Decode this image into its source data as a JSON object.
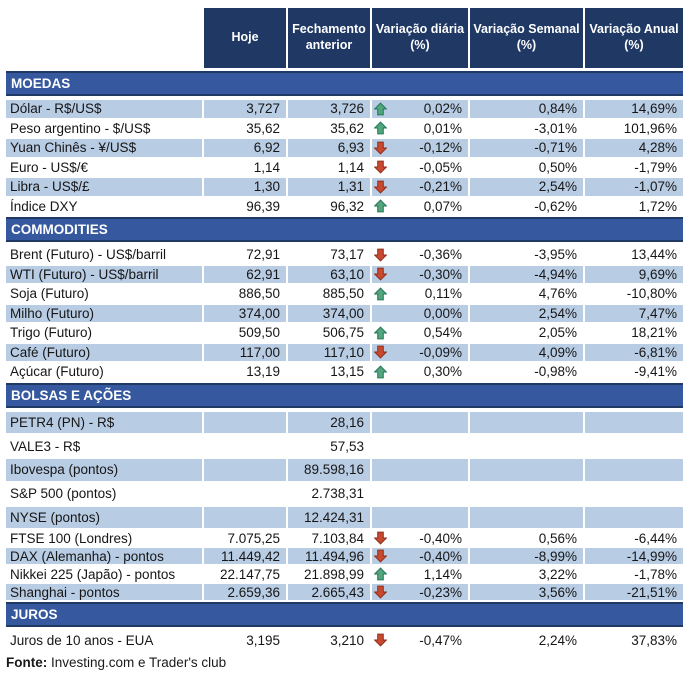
{
  "chart_data": {
    "type": "table",
    "columns": [
      "",
      "Hoje",
      "Fechamento anterior",
      "Variação diária (%)",
      "Variação Semanal (%)",
      "Variação Anual (%)"
    ],
    "sections": [
      {
        "title": "MOEDAS",
        "rows": [
          {
            "label": "Dólar - R$/US$",
            "hoje": "3,727",
            "fechamento": "3,726",
            "trend": "up",
            "diaria": "0,02%",
            "semanal": "0,84%",
            "anual": "14,69%",
            "shaded": true,
            "size": ""
          },
          {
            "label": "Peso argentino - $/US$",
            "hoje": "35,62",
            "fechamento": "35,62",
            "trend": "up",
            "diaria": "0,01%",
            "semanal": "-3,01%",
            "anual": "101,96%",
            "shaded": false,
            "size": ""
          },
          {
            "label": "Yuan Chinês - ¥/US$",
            "hoje": "6,92",
            "fechamento": "6,93",
            "trend": "down",
            "diaria": "-0,12%",
            "semanal": "-0,71%",
            "anual": "4,28%",
            "shaded": true,
            "size": ""
          },
          {
            "label": "Euro - US$/€",
            "hoje": "1,14",
            "fechamento": "1,14",
            "trend": "down",
            "diaria": "-0,05%",
            "semanal": "0,50%",
            "anual": "-1,79%",
            "shaded": false,
            "size": ""
          },
          {
            "label": "Libra - US$/£",
            "hoje": "1,30",
            "fechamento": "1,31",
            "trend": "down",
            "diaria": "-0,21%",
            "semanal": "2,54%",
            "anual": "-1,07%",
            "shaded": true,
            "size": ""
          },
          {
            "label": "Índice DXY",
            "hoje": "96,39",
            "fechamento": "96,32",
            "trend": "up",
            "diaria": "0,07%",
            "semanal": "-0,62%",
            "anual": "1,72%",
            "shaded": false,
            "size": ""
          }
        ]
      },
      {
        "title": "COMMODITIES",
        "rows": [
          {
            "label": "Brent (Futuro) - US$/barril",
            "hoje": "72,91",
            "fechamento": "73,17",
            "trend": "down",
            "diaria": "-0,36%",
            "semanal": "-3,95%",
            "anual": "13,44%",
            "shaded": false,
            "size": ""
          },
          {
            "label": "WTI (Futuro) - US$/barril",
            "hoje": "62,91",
            "fechamento": "63,10",
            "trend": "down",
            "diaria": "-0,30%",
            "semanal": "-4,94%",
            "anual": "9,69%",
            "shaded": true,
            "size": ""
          },
          {
            "label": "Soja (Futuro)",
            "hoje": "886,50",
            "fechamento": "885,50",
            "trend": "up",
            "diaria": "0,11%",
            "semanal": "4,76%",
            "anual": "-10,80%",
            "shaded": false,
            "size": ""
          },
          {
            "label": "Milho (Futuro)",
            "hoje": "374,00",
            "fechamento": "374,00",
            "trend": "",
            "diaria": "0,00%",
            "semanal": "2,54%",
            "anual": "7,47%",
            "shaded": true,
            "size": ""
          },
          {
            "label": "Trigo (Futuro)",
            "hoje": "509,50",
            "fechamento": "506,75",
            "trend": "up",
            "diaria": "0,54%",
            "semanal": "2,05%",
            "anual": "18,21%",
            "shaded": false,
            "size": ""
          },
          {
            "label": "Café (Futuro)",
            "hoje": "117,00",
            "fechamento": "117,10",
            "trend": "down",
            "diaria": "-0,09%",
            "semanal": "4,09%",
            "anual": "-6,81%",
            "shaded": true,
            "size": ""
          },
          {
            "label": "Açúcar (Futuro)",
            "hoje": "13,19",
            "fechamento": "13,15",
            "trend": "up",
            "diaria": "0,30%",
            "semanal": "-0,98%",
            "anual": "-9,41%",
            "shaded": false,
            "size": ""
          }
        ]
      },
      {
        "title": "BOLSAS E AÇÕES",
        "rows": [
          {
            "label": "PETR4 (PN) - R$",
            "hoje": "",
            "fechamento": "28,16",
            "trend": "",
            "diaria": "",
            "semanal": "",
            "anual": "",
            "shaded": true,
            "size": "tall"
          },
          {
            "label": "VALE3 - R$",
            "hoje": "",
            "fechamento": "57,53",
            "trend": "",
            "diaria": "",
            "semanal": "",
            "anual": "",
            "shaded": false,
            "size": "tall"
          },
          {
            "label": "Ibovespa (pontos)",
            "hoje": "",
            "fechamento": "89.598,16",
            "trend": "",
            "diaria": "",
            "semanal": "",
            "anual": "",
            "shaded": true,
            "size": "tall"
          },
          {
            "label": "S&P 500 (pontos)",
            "hoje": "",
            "fechamento": "2.738,31",
            "trend": "",
            "diaria": "",
            "semanal": "",
            "anual": "",
            "shaded": false,
            "size": "tall"
          },
          {
            "label": "NYSE (pontos)",
            "hoje": "",
            "fechamento": "12.424,31",
            "trend": "",
            "diaria": "",
            "semanal": "",
            "anual": "",
            "shaded": true,
            "size": "tall"
          },
          {
            "label": "FTSE 100 (Londres)",
            "hoje": "7.075,25",
            "fechamento": "7.103,84",
            "trend": "down",
            "diaria": "-0,40%",
            "semanal": "0,56%",
            "anual": "-6,44%",
            "shaded": false,
            "size": "short"
          },
          {
            "label": "DAX (Alemanha) - pontos",
            "hoje": "11.449,42",
            "fechamento": "11.494,96",
            "trend": "down",
            "diaria": "-0,40%",
            "semanal": "-8,99%",
            "anual": "-14,99%",
            "shaded": true,
            "size": "short"
          },
          {
            "label": "Nikkei 225 (Japão) - pontos",
            "hoje": "22.147,75",
            "fechamento": "21.898,99",
            "trend": "up",
            "diaria": "1,14%",
            "semanal": "3,22%",
            "anual": "-1,78%",
            "shaded": false,
            "size": "short"
          },
          {
            "label": "Shanghai - pontos",
            "hoje": "2.659,36",
            "fechamento": "2.665,43",
            "trend": "down",
            "diaria": "-0,23%",
            "semanal": "3,56%",
            "anual": "-21,51%",
            "shaded": true,
            "size": "short"
          }
        ]
      },
      {
        "title": "JUROS",
        "rows": [
          {
            "label": "Juros de 10 anos - EUA",
            "hoje": "3,195",
            "fechamento": "3,210",
            "trend": "down",
            "diaria": "-0,47%",
            "semanal": "2,24%",
            "anual": "37,83%",
            "shaded": false,
            "size": ""
          }
        ]
      }
    ],
    "source_note": {
      "bold": "Fonte:",
      "text": " Investing.com e Trader's club"
    }
  },
  "colors": {
    "header_bg": "#1F3864",
    "section_bg": "#35589E",
    "row_shade": "#B8CCE4",
    "arrow_up": "#53A57D",
    "arrow_up_stroke": "#27785A",
    "arrow_down": "#C8492F",
    "arrow_down_stroke": "#8E3120"
  }
}
